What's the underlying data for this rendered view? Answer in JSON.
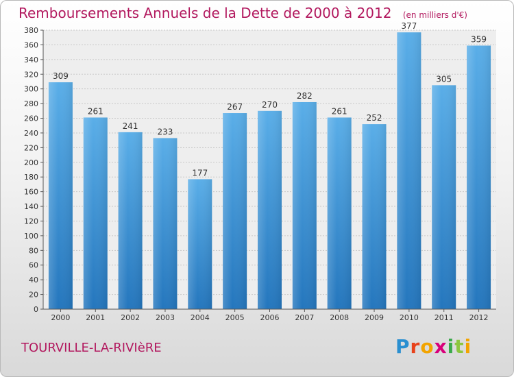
{
  "title": "Remboursements Annuels de la Dette de 2000 à 2012",
  "unit": "(en milliers d'€)",
  "town": "TOURVILLE-LA-RIVIèRE",
  "brand": {
    "letters": [
      "P",
      "r",
      "o",
      "x",
      "i",
      "t",
      "i"
    ],
    "colors": [
      "#2a8fd0",
      "#e8421b",
      "#f2a400",
      "#d8007a",
      "#3aa94a",
      "#8cc63f",
      "#f2a400"
    ]
  },
  "chart_data": {
    "type": "bar",
    "categories": [
      "2000",
      "2001",
      "2002",
      "2003",
      "2004",
      "2005",
      "2006",
      "2007",
      "2008",
      "2009",
      "2010",
      "2011",
      "2012"
    ],
    "values": [
      309,
      261,
      241,
      233,
      177,
      267,
      270,
      282,
      261,
      252,
      377,
      305,
      359
    ],
    "ylim": [
      0,
      380
    ],
    "ytick_step": 20,
    "grid": true,
    "bar_color": "#3d8fd6"
  }
}
